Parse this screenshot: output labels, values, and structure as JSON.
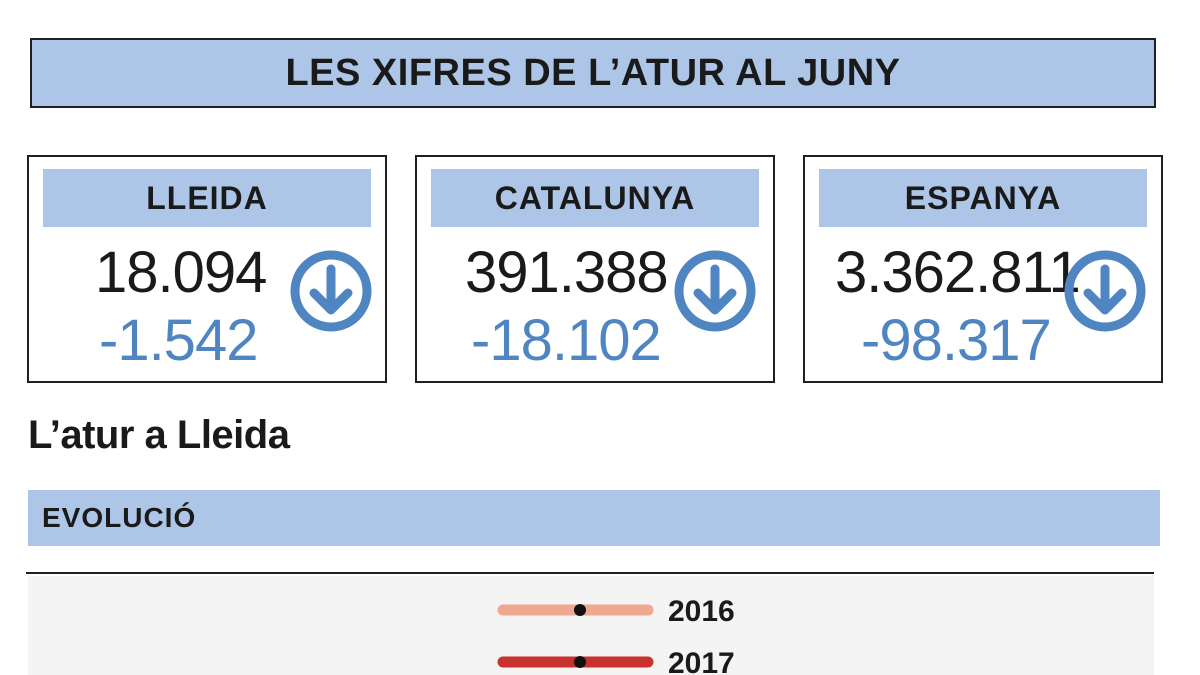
{
  "header": {
    "title": "LES XIFRES DE L’ATUR AL JUNY"
  },
  "cards": [
    {
      "label": "LLEIDA",
      "value": "18.094",
      "change": "-1.542",
      "icon": "arrow-down-circle-icon"
    },
    {
      "label": "CATALUNYA",
      "value": "391.388",
      "change": "-18.102",
      "icon": "arrow-down-circle-icon"
    },
    {
      "label": "ESPANYA",
      "value": "3.362.811",
      "change": "-98.317",
      "icon": "arrow-down-circle-icon"
    }
  ],
  "section": {
    "title": "L’atur a Lleida",
    "subheader": "EVOLUCIÓ"
  },
  "colors": {
    "accent": "#adc6e8",
    "change_text": "#4f86c2",
    "icon": "#4f86c2",
    "series_2016": "#f0a990",
    "series_2017": "#c8322e"
  },
  "chart_data": {
    "type": "line",
    "title": "",
    "series": [
      {
        "name": "2016",
        "values": []
      },
      {
        "name": "2017",
        "values": []
      }
    ]
  }
}
